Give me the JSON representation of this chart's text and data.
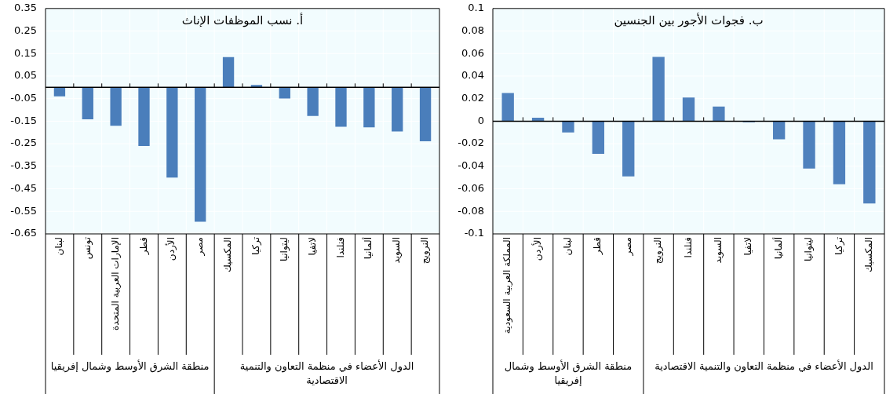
{
  "chart_data": [
    {
      "type": "bar",
      "title": "أ. نسب الموظفات الإناث",
      "categories": [
        "لبنان",
        "تونس",
        "الإمارات العربية المتحدة",
        "قطر",
        "الأردن",
        "مصر",
        "المكسيك",
        "تركيا",
        "ليتوانيا",
        "لاتفيا",
        "فنلندا",
        "ألمانيا",
        "السويد",
        "النرويج"
      ],
      "values": [
        -0.04,
        -0.142,
        -0.17,
        -0.26,
        -0.4,
        -0.596,
        0.134,
        0.011,
        -0.049,
        -0.127,
        -0.175,
        -0.177,
        -0.196,
        -0.239
      ],
      "color": "#4a7ebb",
      "ylim": [
        -0.65,
        0.35
      ],
      "yticks": [
        -0.65,
        -0.55,
        -0.45,
        -0.35,
        -0.25,
        -0.15,
        -0.05,
        0.05,
        0.15,
        0.25,
        0.35
      ],
      "grid": true,
      "annotations": [
        "منطقة الشرق الأوسط وشمال إفريقيا",
        "الدول الأعضاء في منظمة التعاون والتنمية الاقتصادية"
      ]
    },
    {
      "type": "bar",
      "title": "ب. فجوات الأجور بين الجنسين",
      "categories": [
        "المملكة العربية السعودية",
        "الأردن",
        "لبنان",
        "قطر",
        "مصر",
        "النرويج",
        "فنلندا",
        "السويد",
        "لاتفيا",
        "ألمانيا",
        "ليتوانيا",
        "تركيا",
        "المكسيك"
      ],
      "values": [
        0.025,
        0.003,
        -0.01,
        -0.029,
        -0.049,
        0.057,
        0.021,
        0.013,
        -0.001,
        -0.016,
        -0.042,
        -0.056,
        -0.073
      ],
      "color": "#4f81bd",
      "ylim": [
        -0.1,
        0.1
      ],
      "yticks": [
        -0.1,
        -0.08,
        -0.06,
        -0.04,
        -0.02,
        0,
        0.02,
        0.04,
        0.06,
        0.08,
        0.1
      ],
      "grid": true,
      "annotations": [
        "منطقة الشرق الأوسط وشمال إفريقيا",
        "الدول الأعضاء في منظمة التعاون والتنمية الاقتصادية"
      ]
    }
  ]
}
